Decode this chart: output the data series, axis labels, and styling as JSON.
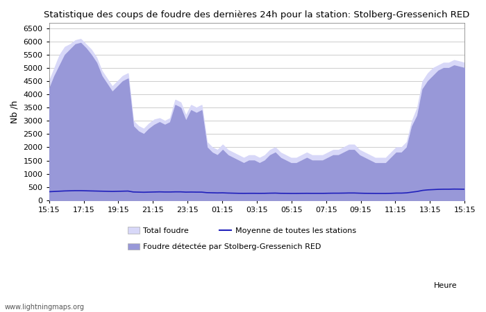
{
  "title": "Statistique des coups de foudre des dernières 24h pour la station: Stolberg-Gressenich RED",
  "ylabel": "Nb /h",
  "xlabel": "Heure",
  "watermark": "www.lightningmaps.org",
  "yticks": [
    0,
    500,
    1000,
    1500,
    2000,
    2500,
    3000,
    3500,
    4000,
    4500,
    5000,
    5500,
    6000,
    6500
  ],
  "ylim": [
    0,
    6700
  ],
  "xtick_labels": [
    "15:15",
    "17:15",
    "19:15",
    "21:15",
    "23:15",
    "01:15",
    "03:15",
    "05:15",
    "07:15",
    "09:15",
    "11:15",
    "13:15",
    "15:15"
  ],
  "color_total": "#d8d8f8",
  "color_detected": "#9898d8",
  "color_line": "#2020bb",
  "bg_color": "#ffffff",
  "grid_color": "#cccccc",
  "legend_total": "Total foudre",
  "legend_detected": "Foudre détectée par Stolberg-Gressenich RED",
  "legend_line": "Moyenne de toutes les stations",
  "total_foudre": [
    4500,
    5000,
    5500,
    5800,
    5900,
    6050,
    6100,
    5900,
    5700,
    5400,
    4900,
    4600,
    4300,
    4500,
    4700,
    4800,
    3000,
    2800,
    2700,
    2900,
    3050,
    3100,
    3000,
    3100,
    3800,
    3700,
    3200,
    3600,
    3500,
    3600,
    2200,
    2000,
    1900,
    2100,
    1900,
    1800,
    1700,
    1600,
    1700,
    1700,
    1600,
    1700,
    1900,
    2000,
    1800,
    1700,
    1600,
    1600,
    1700,
    1800,
    1700,
    1700,
    1700,
    1800,
    1900,
    1900,
    2000,
    2100,
    2100,
    1900,
    1800,
    1700,
    1600,
    1600,
    1600,
    1800,
    2000,
    2000,
    2200,
    3000,
    3500,
    4500,
    4800,
    5000,
    5100,
    5200,
    5200,
    5300,
    5250,
    5200
  ],
  "detected_foudre": [
    4200,
    4700,
    5100,
    5500,
    5700,
    5900,
    5950,
    5750,
    5500,
    5200,
    4700,
    4400,
    4100,
    4300,
    4500,
    4600,
    2800,
    2600,
    2500,
    2700,
    2850,
    2950,
    2850,
    2950,
    3600,
    3500,
    3000,
    3400,
    3300,
    3400,
    2000,
    1800,
    1700,
    1900,
    1700,
    1600,
    1500,
    1400,
    1500,
    1500,
    1400,
    1500,
    1700,
    1800,
    1600,
    1500,
    1400,
    1400,
    1500,
    1600,
    1500,
    1500,
    1500,
    1600,
    1700,
    1700,
    1800,
    1900,
    1900,
    1700,
    1600,
    1500,
    1400,
    1400,
    1400,
    1600,
    1800,
    1800,
    2000,
    2800,
    3200,
    4200,
    4500,
    4700,
    4900,
    5000,
    5000,
    5100,
    5050,
    5000
  ],
  "mean_line": [
    320,
    330,
    340,
    350,
    355,
    360,
    360,
    355,
    350,
    345,
    340,
    335,
    330,
    335,
    340,
    345,
    310,
    305,
    300,
    305,
    310,
    315,
    310,
    310,
    315,
    315,
    305,
    308,
    305,
    305,
    285,
    280,
    275,
    278,
    270,
    265,
    260,
    258,
    260,
    260,
    258,
    260,
    265,
    268,
    260,
    258,
    255,
    255,
    258,
    260,
    258,
    258,
    258,
    262,
    265,
    265,
    268,
    272,
    272,
    265,
    260,
    258,
    255,
    255,
    255,
    260,
    268,
    268,
    278,
    305,
    330,
    370,
    390,
    400,
    410,
    415,
    415,
    420,
    418,
    415
  ]
}
